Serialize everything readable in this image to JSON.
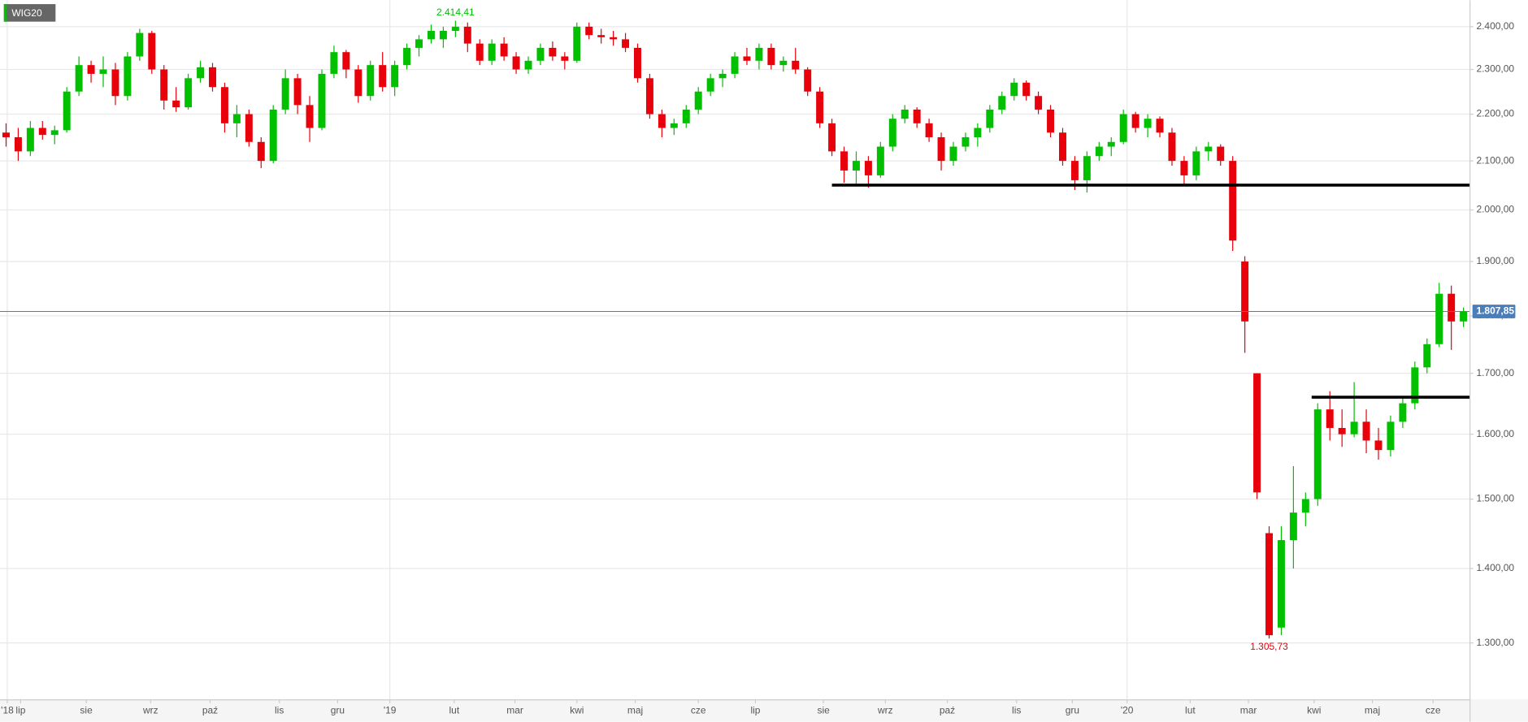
{
  "chart_data": {
    "type": "candlestick",
    "title": "WIG20",
    "log_scale": true,
    "grid": true,
    "up_color": "#00c000",
    "down_color": "#e8000b",
    "ylim": [
      1229,
      2464
    ],
    "yticks": [
      {
        "value": 2400,
        "label": "2.400,00"
      },
      {
        "value": 2300,
        "label": "2.300,00"
      },
      {
        "value": 2200,
        "label": "2.200,00"
      },
      {
        "value": 2100,
        "label": "2.100,00"
      },
      {
        "value": 2000,
        "label": "2.000,00"
      },
      {
        "value": 1900,
        "label": "1.900,00"
      },
      {
        "value": 1800,
        "label": "1.800,00"
      },
      {
        "value": 1700,
        "label": "1.700,00"
      },
      {
        "value": 1600,
        "label": "1.600,00"
      },
      {
        "value": 1500,
        "label": "1.500,00"
      },
      {
        "value": 1400,
        "label": "1.400,00"
      },
      {
        "value": 1300,
        "label": "1.300,00"
      }
    ],
    "xlim": [
      -0.5,
      120.5
    ],
    "xticks": [
      {
        "value": 0.1,
        "label": "'18"
      },
      {
        "value": 1.2,
        "label": "lip"
      },
      {
        "value": 6.6,
        "label": "sie"
      },
      {
        "value": 11.9,
        "label": "wrz"
      },
      {
        "value": 16.8,
        "label": "paź"
      },
      {
        "value": 22.5,
        "label": "lis"
      },
      {
        "value": 27.3,
        "label": "gru"
      },
      {
        "value": 31.6,
        "label": "'19"
      },
      {
        "value": 36.9,
        "label": "lut"
      },
      {
        "value": 41.9,
        "label": "mar"
      },
      {
        "value": 47.0,
        "label": "kwi"
      },
      {
        "value": 51.8,
        "label": "maj"
      },
      {
        "value": 57.0,
        "label": "cze"
      },
      {
        "value": 61.7,
        "label": "lip"
      },
      {
        "value": 67.3,
        "label": "sie"
      },
      {
        "value": 72.4,
        "label": "wrz"
      },
      {
        "value": 77.5,
        "label": "paź"
      },
      {
        "value": 83.2,
        "label": "lis"
      },
      {
        "value": 87.8,
        "label": "gru"
      },
      {
        "value": 92.3,
        "label": "'20"
      },
      {
        "value": 97.5,
        "label": "lut"
      },
      {
        "value": 102.3,
        "label": "mar"
      },
      {
        "value": 107.7,
        "label": "kwi"
      },
      {
        "value": 112.5,
        "label": "maj"
      },
      {
        "value": 117.5,
        "label": "cze"
      }
    ],
    "candles": [
      [
        2160,
        2180,
        2130,
        2150
      ],
      [
        2150,
        2170,
        2100,
        2120
      ],
      [
        2120,
        2185,
        2110,
        2170
      ],
      [
        2170,
        2185,
        2145,
        2155
      ],
      [
        2155,
        2175,
        2135,
        2165
      ],
      [
        2165,
        2260,
        2160,
        2250
      ],
      [
        2250,
        2330,
        2240,
        2310
      ],
      [
        2310,
        2320,
        2270,
        2290
      ],
      [
        2290,
        2330,
        2260,
        2300
      ],
      [
        2300,
        2315,
        2220,
        2240
      ],
      [
        2240,
        2340,
        2230,
        2330
      ],
      [
        2330,
        2395,
        2320,
        2385
      ],
      [
        2385,
        2390,
        2290,
        2300
      ],
      [
        2300,
        2310,
        2210,
        2230
      ],
      [
        2230,
        2260,
        2205,
        2215
      ],
      [
        2215,
        2290,
        2210,
        2280
      ],
      [
        2280,
        2320,
        2270,
        2305
      ],
      [
        2305,
        2315,
        2250,
        2260
      ],
      [
        2260,
        2270,
        2160,
        2180
      ],
      [
        2180,
        2220,
        2150,
        2200
      ],
      [
        2200,
        2210,
        2130,
        2140
      ],
      [
        2140,
        2150,
        2085,
        2100
      ],
      [
        2100,
        2220,
        2095,
        2210
      ],
      [
        2210,
        2300,
        2200,
        2280
      ],
      [
        2280,
        2290,
        2200,
        2220
      ],
      [
        2220,
        2240,
        2140,
        2170
      ],
      [
        2170,
        2300,
        2165,
        2290
      ],
      [
        2290,
        2355,
        2280,
        2340
      ],
      [
        2340,
        2345,
        2280,
        2300
      ],
      [
        2300,
        2310,
        2225,
        2240
      ],
      [
        2240,
        2320,
        2230,
        2310
      ],
      [
        2310,
        2340,
        2250,
        2260
      ],
      [
        2260,
        2320,
        2240,
        2310
      ],
      [
        2310,
        2360,
        2300,
        2350
      ],
      [
        2350,
        2380,
        2330,
        2370
      ],
      [
        2370,
        2405,
        2360,
        2390
      ],
      [
        2370,
        2400,
        2350,
        2390
      ],
      [
        2390,
        2414.41,
        2375,
        2400
      ],
      [
        2400,
        2410,
        2340,
        2360
      ],
      [
        2360,
        2370,
        2310,
        2320
      ],
      [
        2320,
        2370,
        2310,
        2360
      ],
      [
        2360,
        2375,
        2320,
        2330
      ],
      [
        2330,
        2340,
        2290,
        2300
      ],
      [
        2300,
        2330,
        2290,
        2320
      ],
      [
        2320,
        2360,
        2310,
        2350
      ],
      [
        2350,
        2365,
        2320,
        2330
      ],
      [
        2330,
        2340,
        2300,
        2320
      ],
      [
        2320,
        2410,
        2315,
        2400
      ],
      [
        2400,
        2410,
        2370,
        2380
      ],
      [
        2380,
        2395,
        2360,
        2375
      ],
      [
        2375,
        2390,
        2355,
        2370
      ],
      [
        2370,
        2385,
        2340,
        2350
      ],
      [
        2350,
        2360,
        2270,
        2280
      ],
      [
        2280,
        2290,
        2190,
        2200
      ],
      [
        2200,
        2210,
        2150,
        2170
      ],
      [
        2170,
        2190,
        2155,
        2180
      ],
      [
        2180,
        2220,
        2170,
        2210
      ],
      [
        2210,
        2260,
        2200,
        2250
      ],
      [
        2250,
        2290,
        2240,
        2280
      ],
      [
        2280,
        2300,
        2260,
        2290
      ],
      [
        2290,
        2340,
        2280,
        2330
      ],
      [
        2330,
        2350,
        2310,
        2320
      ],
      [
        2320,
        2360,
        2300,
        2350
      ],
      [
        2350,
        2360,
        2300,
        2310
      ],
      [
        2310,
        2330,
        2295,
        2320
      ],
      [
        2320,
        2350,
        2290,
        2300
      ],
      [
        2300,
        2305,
        2240,
        2250
      ],
      [
        2250,
        2260,
        2170,
        2180
      ],
      [
        2180,
        2190,
        2110,
        2120
      ],
      [
        2120,
        2130,
        2055,
        2080
      ],
      [
        2080,
        2120,
        2050,
        2100
      ],
      [
        2100,
        2110,
        2045,
        2070
      ],
      [
        2070,
        2140,
        2065,
        2130
      ],
      [
        2130,
        2200,
        2120,
        2190
      ],
      [
        2190,
        2220,
        2180,
        2210
      ],
      [
        2210,
        2215,
        2170,
        2180
      ],
      [
        2180,
        2190,
        2140,
        2150
      ],
      [
        2150,
        2160,
        2080,
        2100
      ],
      [
        2100,
        2140,
        2090,
        2130
      ],
      [
        2130,
        2160,
        2120,
        2150
      ],
      [
        2150,
        2180,
        2130,
        2170
      ],
      [
        2170,
        2220,
        2160,
        2210
      ],
      [
        2210,
        2250,
        2200,
        2240
      ],
      [
        2240,
        2280,
        2230,
        2270
      ],
      [
        2270,
        2275,
        2230,
        2240
      ],
      [
        2240,
        2250,
        2200,
        2210
      ],
      [
        2210,
        2220,
        2150,
        2160
      ],
      [
        2160,
        2170,
        2090,
        2100
      ],
      [
        2100,
        2110,
        2040,
        2060
      ],
      [
        2060,
        2120,
        2035,
        2110
      ],
      [
        2110,
        2140,
        2100,
        2130
      ],
      [
        2130,
        2150,
        2110,
        2140
      ],
      [
        2140,
        2210,
        2135,
        2200
      ],
      [
        2200,
        2205,
        2160,
        2170
      ],
      [
        2170,
        2200,
        2150,
        2190
      ],
      [
        2190,
        2195,
        2150,
        2160
      ],
      [
        2160,
        2170,
        2090,
        2100
      ],
      [
        2100,
        2110,
        2050,
        2070
      ],
      [
        2070,
        2130,
        2060,
        2120
      ],
      [
        2120,
        2140,
        2100,
        2130
      ],
      [
        2130,
        2135,
        2090,
        2100
      ],
      [
        2100,
        2110,
        1920,
        1940
      ],
      [
        1900,
        1910,
        1735,
        1790
      ],
      [
        1700,
        1700,
        1500,
        1510
      ],
      [
        1450,
        1460,
        1305.73,
        1310
      ],
      [
        1320,
        1460,
        1310,
        1440
      ],
      [
        1440,
        1550,
        1400,
        1480
      ],
      [
        1480,
        1510,
        1460,
        1500
      ],
      [
        1500,
        1650,
        1490,
        1640
      ],
      [
        1640,
        1670,
        1590,
        1610
      ],
      [
        1610,
        1640,
        1580,
        1600
      ],
      [
        1600,
        1685,
        1595,
        1620
      ],
      [
        1620,
        1640,
        1570,
        1590
      ],
      [
        1590,
        1610,
        1560,
        1575
      ],
      [
        1575,
        1630,
        1565,
        1620
      ],
      [
        1620,
        1660,
        1610,
        1650
      ],
      [
        1650,
        1720,
        1640,
        1710
      ],
      [
        1710,
        1760,
        1700,
        1750
      ],
      [
        1750,
        1860,
        1745,
        1840
      ],
      [
        1840,
        1855,
        1740,
        1790
      ],
      [
        1790,
        1815,
        1780,
        1807.85
      ]
    ],
    "high_label": {
      "value": 2414.41,
      "label": "2.414,41",
      "candle": 37
    },
    "low_label": {
      "value": 1305.73,
      "label": "1.305,73",
      "candle": 104
    },
    "last_price": {
      "value": 1807.85,
      "label": "1.807,85"
    },
    "levels": [
      {
        "value": 2050,
        "start": 68
      },
      {
        "value": 1660,
        "start": 107.5
      }
    ]
  }
}
